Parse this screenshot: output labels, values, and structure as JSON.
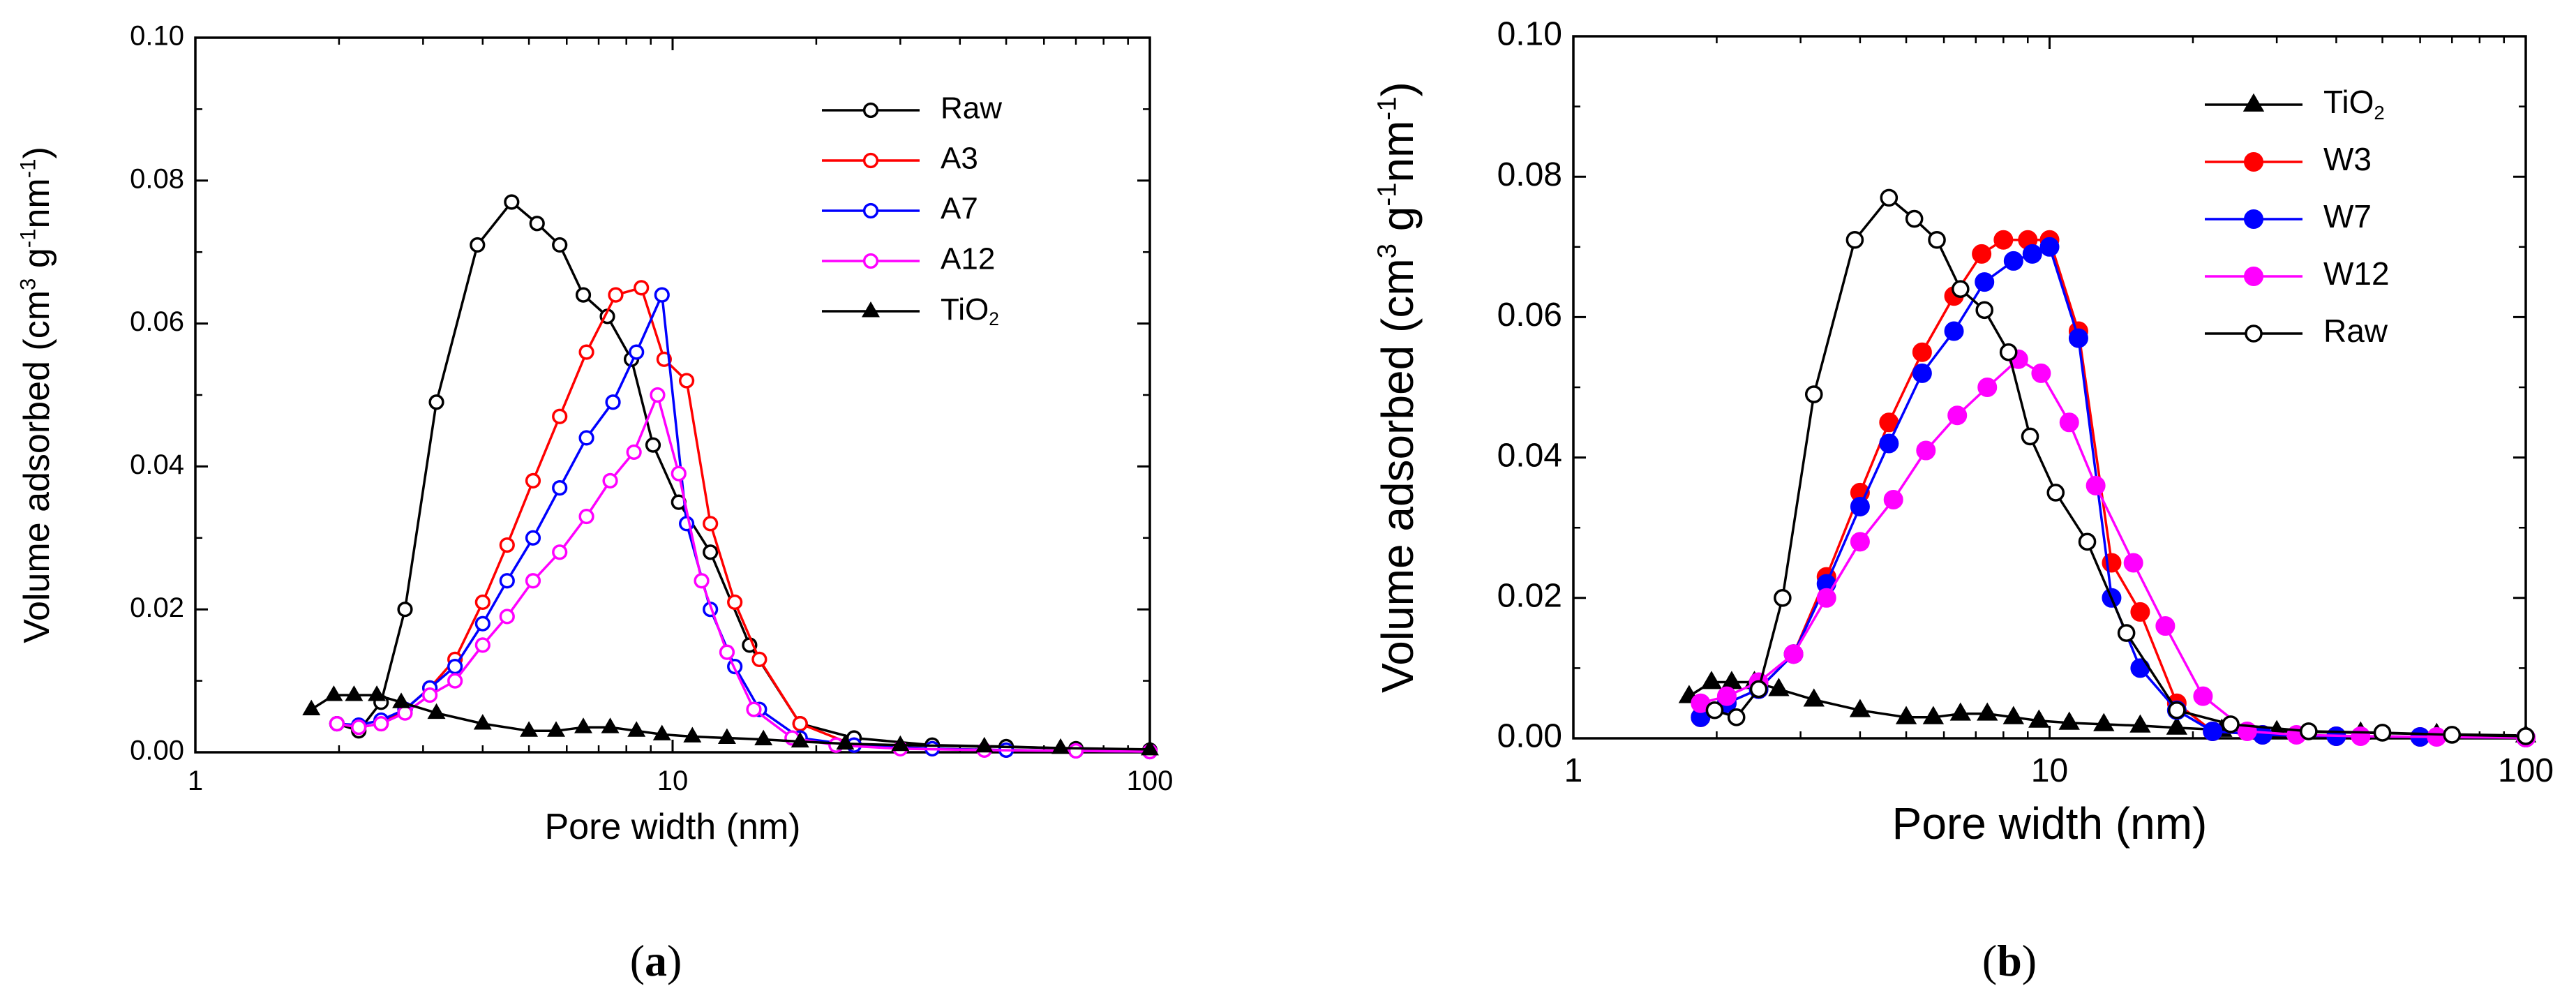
{
  "chart_data": [
    {
      "type": "line",
      "panel_label": "a",
      "xlabel": "Pore width (nm)",
      "ylabel": "Volume  adsorbed (cm3 g-1nm-1)",
      "xscale": "log",
      "xlim": [
        1,
        100
      ],
      "ylim": [
        0,
        0.1
      ],
      "xticks": [
        1,
        10,
        100
      ],
      "xtick_labels": [
        "1",
        "10",
        "100"
      ],
      "yticks": [
        0,
        0.02,
        0.04,
        0.06,
        0.08,
        0.1
      ],
      "ytick_labels": [
        "0.00",
        "0.02",
        "0.04",
        "0.06",
        "0.08",
        "0.10"
      ],
      "legend_position": "top-right",
      "series": [
        {
          "name": "Raw",
          "color": "#000000",
          "marker": "open-circle",
          "x": [
            1.98,
            2.2,
            2.45,
            2.75,
            3.2,
            3.9,
            4.6,
            5.2,
            5.8,
            6.5,
            7.3,
            8.2,
            9.1,
            10.3,
            12.0,
            14.5,
            18.5,
            24,
            35,
            50,
            70,
            100
          ],
          "y": [
            0.004,
            0.003,
            0.007,
            0.02,
            0.049,
            0.071,
            0.077,
            0.074,
            0.071,
            0.064,
            0.061,
            0.055,
            0.043,
            0.035,
            0.028,
            0.015,
            0.004,
            0.002,
            0.001,
            0.0008,
            0.0005,
            0.0003
          ]
        },
        {
          "name": "A3",
          "color": "#ff0000",
          "marker": "open-circle",
          "x": [
            1.98,
            2.2,
            2.45,
            2.75,
            3.1,
            3.5,
            4.0,
            4.5,
            5.1,
            5.8,
            6.6,
            7.6,
            8.6,
            9.6,
            10.7,
            12.0,
            13.5,
            15.2,
            18.5,
            24,
            35,
            50,
            70,
            100
          ],
          "y": [
            0.004,
            0.0035,
            0.004,
            0.006,
            0.009,
            0.013,
            0.021,
            0.029,
            0.038,
            0.047,
            0.056,
            0.064,
            0.065,
            0.055,
            0.052,
            0.032,
            0.021,
            0.013,
            0.004,
            0.001,
            0.0005,
            0.0003,
            0.0002,
            0.0001
          ]
        },
        {
          "name": "A7",
          "color": "#0000ff",
          "marker": "open-circle",
          "x": [
            1.98,
            2.2,
            2.45,
            2.75,
            3.1,
            3.5,
            4.0,
            4.5,
            5.1,
            5.8,
            6.6,
            7.5,
            8.4,
            9.5,
            10.7,
            12.0,
            13.5,
            15.2,
            18.5,
            24,
            35,
            50,
            70,
            100
          ],
          "y": [
            0.004,
            0.0038,
            0.0045,
            0.006,
            0.009,
            0.012,
            0.018,
            0.024,
            0.03,
            0.037,
            0.044,
            0.049,
            0.056,
            0.064,
            0.032,
            0.02,
            0.012,
            0.006,
            0.002,
            0.001,
            0.0005,
            0.0003,
            0.0002,
            0.0001
          ]
        },
        {
          "name": "A12",
          "color": "#ff00ff",
          "marker": "open-circle",
          "x": [
            1.98,
            2.2,
            2.45,
            2.75,
            3.1,
            3.5,
            4.0,
            4.5,
            5.1,
            5.8,
            6.6,
            7.4,
            8.3,
            9.3,
            10.3,
            11.5,
            13.0,
            14.8,
            17.8,
            22,
            30,
            45,
            70,
            100
          ],
          "y": [
            0.004,
            0.0035,
            0.004,
            0.0055,
            0.008,
            0.01,
            0.015,
            0.019,
            0.024,
            0.028,
            0.033,
            0.038,
            0.042,
            0.05,
            0.039,
            0.024,
            0.014,
            0.006,
            0.002,
            0.001,
            0.0005,
            0.0003,
            0.0002,
            0.0001
          ]
        },
        {
          "name": "TiO2",
          "color": "#000000",
          "marker": "filled-triangle",
          "x": [
            1.75,
            1.95,
            2.15,
            2.4,
            2.7,
            3.2,
            4.0,
            5.0,
            5.7,
            6.5,
            7.4,
            8.4,
            9.5,
            11.0,
            13.0,
            15.5,
            18.5,
            23,
            30,
            45,
            65,
            100
          ],
          "y": [
            0.006,
            0.008,
            0.008,
            0.008,
            0.007,
            0.0055,
            0.004,
            0.003,
            0.003,
            0.0035,
            0.0035,
            0.003,
            0.0025,
            0.0022,
            0.002,
            0.0018,
            0.0015,
            0.0012,
            0.001,
            0.0008,
            0.0006,
            0.0004
          ]
        }
      ]
    },
    {
      "type": "line",
      "panel_label": "b",
      "xlabel": "Pore width (nm)",
      "ylabel": "Volume  adsorbed (cm3 g-1nm-1)",
      "xscale": "log",
      "xlim": [
        1,
        100
      ],
      "ylim": [
        0,
        0.1
      ],
      "xticks": [
        1,
        10,
        100
      ],
      "xtick_labels": [
        "1",
        "10",
        "100"
      ],
      "yticks": [
        0,
        0.02,
        0.04,
        0.06,
        0.08,
        0.1
      ],
      "ytick_labels": [
        "0.00",
        "0.02",
        "0.04",
        "0.06",
        "0.08",
        "0.10"
      ],
      "legend_position": "top-right",
      "series": [
        {
          "name": "TiO2",
          "color": "#000000",
          "marker": "filled-triangle",
          "x": [
            1.75,
            1.95,
            2.15,
            2.4,
            2.7,
            3.2,
            4.0,
            5.0,
            5.7,
            6.5,
            7.4,
            8.4,
            9.5,
            11.0,
            13.0,
            15.5,
            18.5,
            23,
            30,
            45,
            65,
            100
          ],
          "y": [
            0.006,
            0.008,
            0.008,
            0.008,
            0.007,
            0.0055,
            0.004,
            0.003,
            0.003,
            0.0035,
            0.0035,
            0.003,
            0.0025,
            0.0022,
            0.002,
            0.0018,
            0.0015,
            0.0012,
            0.001,
            0.0008,
            0.0006,
            0.0004
          ]
        },
        {
          "name": "W3",
          "color": "#ff0000",
          "marker": "filled-circle",
          "x": [
            1.85,
            2.1,
            2.45,
            2.9,
            3.4,
            4.0,
            4.6,
            5.4,
            6.3,
            7.2,
            8.0,
            9.0,
            10.0,
            11.5,
            13.5,
            15.5,
            18.5,
            22,
            28,
            40,
            60,
            100
          ],
          "y": [
            0.003,
            0.005,
            0.007,
            0.012,
            0.023,
            0.035,
            0.045,
            0.055,
            0.063,
            0.069,
            0.071,
            0.071,
            0.071,
            0.058,
            0.025,
            0.018,
            0.005,
            0.001,
            0.0005,
            0.0003,
            0.0002,
            0.0001
          ]
        },
        {
          "name": "W7",
          "color": "#0000ff",
          "marker": "filled-circle",
          "x": [
            1.85,
            2.1,
            2.45,
            2.9,
            3.4,
            4.0,
            4.6,
            5.4,
            6.3,
            7.3,
            8.4,
            9.2,
            10.0,
            11.5,
            13.5,
            15.5,
            18.5,
            22,
            28,
            40,
            60,
            100
          ],
          "y": [
            0.003,
            0.005,
            0.007,
            0.012,
            0.022,
            0.033,
            0.042,
            0.052,
            0.058,
            0.065,
            0.068,
            0.069,
            0.07,
            0.057,
            0.02,
            0.01,
            0.004,
            0.001,
            0.0005,
            0.0003,
            0.0002,
            0.0001
          ]
        },
        {
          "name": "W12",
          "color": "#ff00ff",
          "marker": "filled-circle",
          "x": [
            1.85,
            2.1,
            2.45,
            2.9,
            3.4,
            4.0,
            4.7,
            5.5,
            6.4,
            7.4,
            8.6,
            9.6,
            11.0,
            12.5,
            15.0,
            17.5,
            21,
            26,
            33,
            45,
            65,
            100
          ],
          "y": [
            0.005,
            0.006,
            0.008,
            0.012,
            0.02,
            0.028,
            0.034,
            0.041,
            0.046,
            0.05,
            0.054,
            0.052,
            0.045,
            0.036,
            0.025,
            0.016,
            0.006,
            0.001,
            0.0005,
            0.0003,
            0.0002,
            0.0001
          ]
        },
        {
          "name": "Raw",
          "color": "#000000",
          "marker": "open-circle",
          "x": [
            1.98,
            2.2,
            2.45,
            2.75,
            3.2,
            3.9,
            4.6,
            5.2,
            5.8,
            6.5,
            7.3,
            8.2,
            9.1,
            10.3,
            12.0,
            14.5,
            18.5,
            24,
            35,
            50,
            70,
            100
          ],
          "y": [
            0.004,
            0.003,
            0.007,
            0.02,
            0.049,
            0.071,
            0.077,
            0.074,
            0.071,
            0.064,
            0.061,
            0.055,
            0.043,
            0.035,
            0.028,
            0.015,
            0.004,
            0.002,
            0.001,
            0.0008,
            0.0005,
            0.0003
          ]
        }
      ]
    }
  ]
}
